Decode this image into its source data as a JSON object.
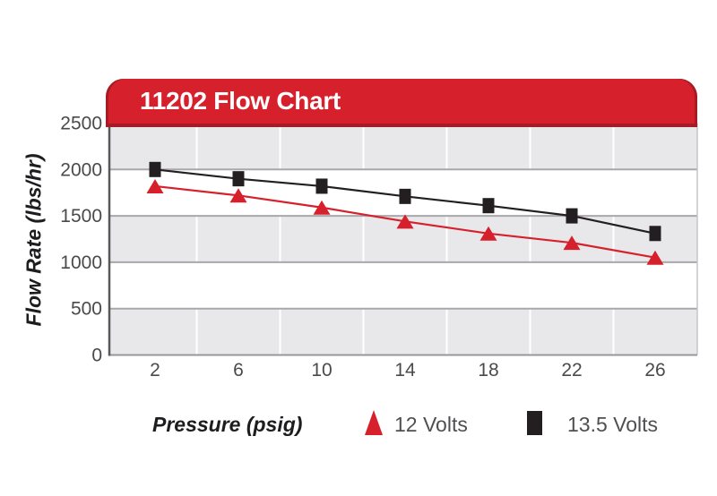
{
  "banner": {
    "title": "11202 Flow Chart",
    "background": "#d6212d",
    "edge_color": "#a51c24",
    "text_color": "#ffffff"
  },
  "axes": {
    "y_title": "Flow Rate (lbs/hr)",
    "x_title": "Pressure (psig)"
  },
  "legend": {
    "items": [
      {
        "label": "12 Volts",
        "marker": "triangle",
        "color": "#d6212d"
      },
      {
        "label": "13.5 Volts",
        "marker": "square",
        "color": "#231f20"
      }
    ]
  },
  "chart_data": {
    "type": "line",
    "title": "11202 Flow Chart",
    "xlabel": "Pressure (psig)",
    "ylabel": "Flow Rate (lbs/hr)",
    "x": [
      2,
      6,
      10,
      14,
      18,
      22,
      26
    ],
    "series": [
      {
        "name": "12 Volts",
        "marker": "triangle",
        "color": "#d6212d",
        "values": [
          1820,
          1720,
          1590,
          1440,
          1310,
          1210,
          1050
        ]
      },
      {
        "name": "13.5 Volts",
        "marker": "square",
        "color": "#231f20",
        "values": [
          2000,
          1900,
          1820,
          1710,
          1610,
          1500,
          1310
        ]
      }
    ],
    "xlim": [
      0,
      28
    ],
    "ylim": [
      0,
      2500
    ],
    "y_ticks": [
      0,
      500,
      1000,
      1500,
      2000,
      2500
    ],
    "x_ticks": [
      2,
      6,
      10,
      14,
      18,
      22,
      26
    ],
    "x_gridlines": [
      4,
      8,
      12,
      16,
      20,
      24
    ],
    "bands": {
      "step": 500,
      "colors": [
        "#e8e8ea",
        "#ffffff"
      ]
    },
    "grid_color": "#a8a8ab",
    "v_grid_color": "#ffffff",
    "axis_line_color": "#58585b",
    "bottom_line_color": "#97979a",
    "right_line_color": "#c6c6c9",
    "tick_color": "#4a4a4c",
    "grid": true,
    "legend_position": "bottom"
  }
}
